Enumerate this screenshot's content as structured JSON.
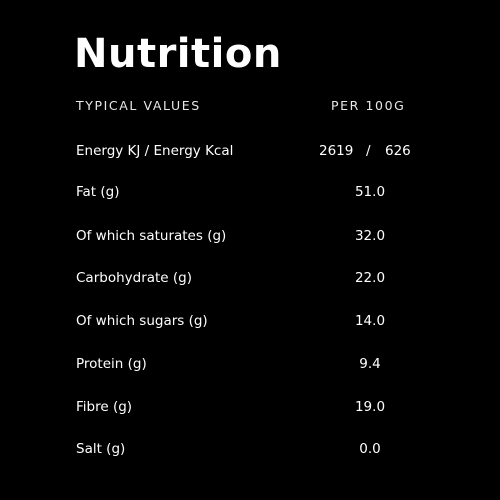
{
  "title": "Nutrition",
  "header": {
    "left": "TYPICAL VALUES",
    "right": "PER 100G"
  },
  "energy": {
    "label": "Energy KJ / Energy Kcal",
    "kj": "2619",
    "separator": "/",
    "kcal": "626"
  },
  "rows": [
    {
      "label": "Fat (g)",
      "value": "51.0"
    },
    {
      "label": "Of which saturates (g)",
      "value": "32.0"
    },
    {
      "label": "Carbohydrate (g)",
      "value": "22.0"
    },
    {
      "label": "Of which sugars (g)",
      "value": "14.0"
    },
    {
      "label": "Protein (g)",
      "value": "9.4"
    },
    {
      "label": "Fibre (g)",
      "value": "19.0"
    },
    {
      "label": "Salt (g)",
      "value": "0.0"
    }
  ]
}
